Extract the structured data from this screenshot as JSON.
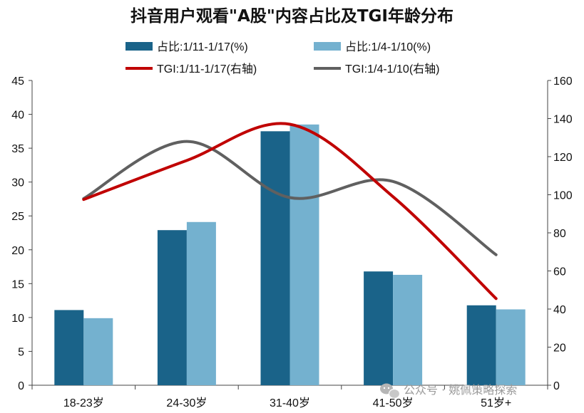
{
  "chart_data": {
    "type": "bar+line",
    "title": "抖音用户观看\"A股\"内容占比及TGI年龄分布",
    "categories": [
      "18-23岁",
      "24-30岁",
      "31-40岁",
      "41-50岁",
      "51岁+"
    ],
    "bar_series": [
      {
        "name": "占比:1/11-1/17(%)",
        "values": [
          11.1,
          22.9,
          37.5,
          16.8,
          11.8
        ],
        "color": "#1a6389"
      },
      {
        "name": "占比:1/4-1/10(%)",
        "values": [
          9.9,
          24.1,
          38.5,
          16.3,
          11.2
        ],
        "color": "#74b1cf"
      }
    ],
    "line_series": [
      {
        "name": "TGI:1/11-1/17(右轴)",
        "values": [
          97.5,
          118,
          137,
          99,
          45.5
        ],
        "color": "#c00000"
      },
      {
        "name": "TGI:1/4-1/10(右轴)",
        "values": [
          98,
          128,
          98.5,
          107,
          68.5
        ],
        "color": "#606060"
      }
    ],
    "y_left": {
      "min": 0,
      "max": 45,
      "step": 5,
      "ticks": [
        "0",
        "5",
        "10",
        "15",
        "20",
        "25",
        "30",
        "35",
        "40",
        "45"
      ]
    },
    "y_right": {
      "min": 0,
      "max": 160,
      "step": 20,
      "ticks": [
        "0",
        "20",
        "40",
        "60",
        "80",
        "100",
        "120",
        "140",
        "160"
      ]
    },
    "grid": false,
    "legend_position": "top-center"
  },
  "watermark": {
    "icon": "wechat-icon",
    "text": "公众号 · 姚佩策略探索"
  }
}
